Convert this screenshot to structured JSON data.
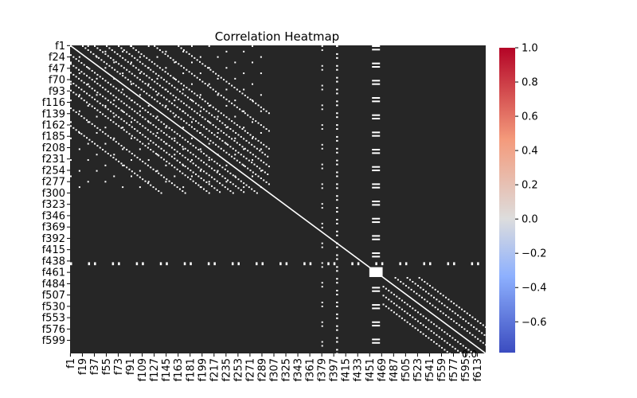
{
  "chart_data": {
    "type": "heatmap",
    "title": "Correlation Heatmap",
    "xlabel": "",
    "ylabel": "",
    "n_features": 625,
    "x_tick_labels": [
      "f1",
      "f19",
      "f37",
      "f55",
      "f73",
      "f91",
      "f109",
      "f127",
      "f145",
      "f163",
      "f181",
      "f199",
      "f217",
      "f235",
      "f253",
      "f271",
      "f289",
      "f307",
      "f325",
      "f343",
      "f361",
      "f379",
      "f397",
      "f415",
      "f433",
      "f451",
      "f469",
      "f487",
      "f505",
      "f523",
      "f541",
      "f559",
      "f577",
      "f595",
      "f613"
    ],
    "y_tick_labels": [
      "f1",
      "f24",
      "f47",
      "f70",
      "f93",
      "f116",
      "f139",
      "f162",
      "f185",
      "f208",
      "f231",
      "f254",
      "f277",
      "f300",
      "f323",
      "f346",
      "f369",
      "f392",
      "f415",
      "f438",
      "f461",
      "f484",
      "f507",
      "f530",
      "f553",
      "f576",
      "f599"
    ],
    "colorbar": {
      "colormap": "coolwarm",
      "range": [
        -0.78,
        1.0
      ],
      "ticks": [
        "1.0",
        "0.8",
        "0.6",
        "0.4",
        "0.2",
        "0.0",
        "−0.2",
        "−0.4",
        "−0.6"
      ],
      "tick_values": [
        1.0,
        0.8,
        0.6,
        0.4,
        0.2,
        0.0,
        -0.2,
        -0.4,
        -0.6
      ]
    },
    "cell_annotation_color": "#262626",
    "diagonal_value": 1.0,
    "high_correlation_bands": [
      {
        "note": "block",
        "feature_range": [
          450,
          470
        ],
        "value": 1.0
      }
    ],
    "visible_annotation_fragment": "0.0"
  }
}
